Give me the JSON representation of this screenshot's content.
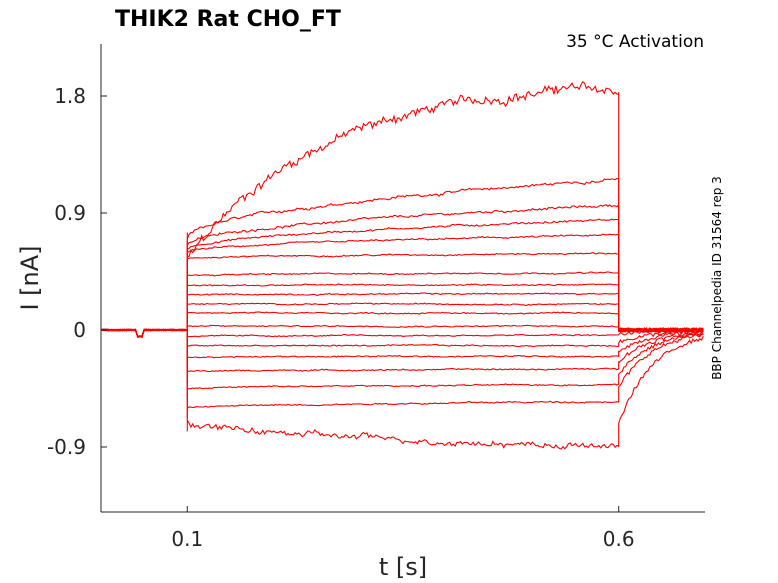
{
  "chart_data": {
    "type": "line",
    "title": "THIK2  Rat  CHO_FT",
    "subtitle": "35 °C  Activation",
    "side_note": "BBP Channelpedia ID 31564 rep 3",
    "xlabel": "t [s]",
    "ylabel": "I [nA]",
    "xlim": [
      0.0,
      0.7
    ],
    "ylim": [
      -1.4,
      2.2
    ],
    "xticks": [
      0.1,
      0.6
    ],
    "xtick_labels": [
      "0.1",
      "0.6"
    ],
    "yticks": [
      -0.9,
      0,
      0.9,
      1.8
    ],
    "ytick_labels": [
      "-0.9",
      "0",
      "0.9",
      "1.8"
    ],
    "grid": false,
    "color": "#ff0000",
    "stim_start": 0.1,
    "stim_end": 0.6,
    "series": [
      {
        "start": 0.55,
        "end": 1.83,
        "peak": 1.87
      },
      {
        "start": 0.7,
        "end": 1.16
      },
      {
        "start": 0.65,
        "end": 0.96
      },
      {
        "start": 0.62,
        "end": 0.85
      },
      {
        "start": 0.6,
        "end": 0.73
      },
      {
        "start": 0.55,
        "end": 0.59
      },
      {
        "start": 0.42,
        "end": 0.44
      },
      {
        "start": 0.34,
        "end": 0.35
      },
      {
        "start": 0.27,
        "end": 0.28
      },
      {
        "start": 0.2,
        "end": 0.2
      },
      {
        "start": 0.13,
        "end": 0.13
      },
      {
        "start": 0.03,
        "end": 0.03
      },
      {
        "start": -0.05,
        "end": -0.04
      },
      {
        "start": -0.12,
        "end": -0.12
      },
      {
        "start": -0.21,
        "end": -0.2
      },
      {
        "start": -0.32,
        "end": -0.3
      },
      {
        "start": -0.45,
        "end": -0.42
      },
      {
        "start": -0.6,
        "end": -0.55
      },
      {
        "start": -0.7,
        "end": -0.9
      }
    ]
  }
}
